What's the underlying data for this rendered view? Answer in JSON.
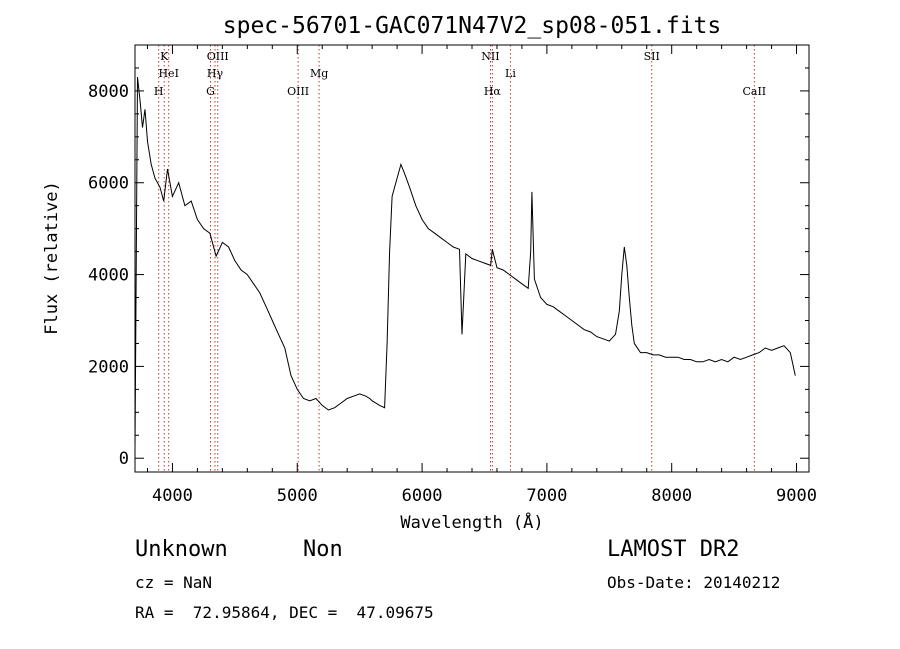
{
  "chart_data": {
    "type": "line",
    "title": "spec-56701-GAC071N47V2_sp08-051.fits",
    "xlabel": "Wavelength (Å)",
    "ylabel": "Flux (relative)",
    "xlim": [
      3700,
      9100
    ],
    "ylim": [
      -300,
      9000
    ],
    "x_ticks": [
      4000,
      5000,
      6000,
      7000,
      8000,
      9000
    ],
    "y_ticks": [
      0,
      2000,
      4000,
      6000,
      8000
    ],
    "grid": false,
    "line_color": "#000000",
    "marker_color": "#c0392b",
    "series": [
      {
        "x": [
          3700,
          3720,
          3740,
          3760,
          3780,
          3800,
          3830,
          3860,
          3900,
          3930,
          3960,
          4000,
          4050,
          4100,
          4150,
          4200,
          4250,
          4300,
          4350,
          4400,
          4450,
          4500,
          4550,
          4600,
          4650,
          4700,
          4750,
          4800,
          4850,
          4900,
          4950,
          5000,
          5050,
          5100,
          5150,
          5200,
          5250,
          5300,
          5350,
          5400,
          5450,
          5500,
          5550,
          5580,
          5600,
          5630,
          5660,
          5700,
          5720,
          5740,
          5760,
          5780,
          5800,
          5830,
          5860,
          5900,
          5950,
          6000,
          6050,
          6100,
          6150,
          6200,
          6250,
          6300,
          6320,
          6350,
          6400,
          6450,
          6500,
          6550,
          6563,
          6600,
          6650,
          6700,
          6750,
          6800,
          6850,
          6870,
          6880,
          6890,
          6900,
          6950,
          7000,
          7050,
          7100,
          7150,
          7200,
          7250,
          7300,
          7350,
          7400,
          7450,
          7500,
          7550,
          7580,
          7600,
          7620,
          7640,
          7660,
          7680,
          7700,
          7750,
          7800,
          7850,
          7900,
          7950,
          8000,
          8050,
          8100,
          8150,
          8200,
          8250,
          8300,
          8350,
          8400,
          8450,
          8500,
          8550,
          8600,
          8650,
          8700,
          8750,
          8800,
          8850,
          8900,
          8950,
          8990
        ],
        "y": [
          200,
          8300,
          7800,
          7200,
          7600,
          6900,
          6400,
          6100,
          5900,
          5600,
          6300,
          5700,
          6000,
          5500,
          5600,
          5200,
          5000,
          4900,
          4400,
          4700,
          4600,
          4300,
          4100,
          4000,
          3800,
          3600,
          3300,
          3000,
          2700,
          2400,
          1800,
          1500,
          1300,
          1250,
          1300,
          1150,
          1050,
          1100,
          1200,
          1300,
          1350,
          1400,
          1350,
          1300,
          1250,
          1200,
          1150,
          1100,
          2500,
          4500,
          5700,
          5900,
          6100,
          6400,
          6200,
          5900,
          5500,
          5200,
          5000,
          4900,
          4800,
          4700,
          4600,
          4550,
          2700,
          4450,
          4350,
          4300,
          4250,
          4200,
          4550,
          4150,
          4100,
          4000,
          3900,
          3800,
          3700,
          4500,
          5800,
          4800,
          3900,
          3500,
          3350,
          3300,
          3200,
          3100,
          3000,
          2900,
          2800,
          2750,
          2650,
          2600,
          2550,
          2700,
          3200,
          4000,
          4600,
          4200,
          3500,
          2900,
          2500,
          2300,
          2300,
          2250,
          2250,
          2200,
          2200,
          2200,
          2150,
          2150,
          2100,
          2100,
          2150,
          2100,
          2150,
          2100,
          2200,
          2150,
          2200,
          2250,
          2300,
          2400,
          2350,
          2400,
          2450,
          2300,
          1800
        ]
      }
    ],
    "lines": [
      {
        "label": "H",
        "x": 3890,
        "row": 2
      },
      {
        "label": "K",
        "x": 3934,
        "row": 0
      },
      {
        "label": "HeI",
        "x": 3970,
        "row": 1
      },
      {
        "label": "G",
        "x": 4305,
        "row": 2
      },
      {
        "label": "Hγ",
        "x": 4341,
        "row": 1
      },
      {
        "label": "OIII",
        "x": 4363,
        "row": 0
      },
      {
        "label": "OIII",
        "x": 5007,
        "row": 2
      },
      {
        "label": "Mg",
        "x": 5175,
        "row": 1
      },
      {
        "label": "NII",
        "x": 6548,
        "row": 0
      },
      {
        "label": "Hα",
        "x": 6563,
        "row": 2
      },
      {
        "label": "Li",
        "x": 6708,
        "row": 1
      },
      {
        "label": "SII",
        "x": 7840,
        "row": 0
      },
      {
        "label": "CaII",
        "x": 8662,
        "row": 2
      }
    ]
  },
  "info": {
    "class_name": "Unknown",
    "subclass": "Non",
    "survey": "LAMOST DR2",
    "cz": "cz = NaN",
    "obs_date": "Obs-Date: 20140212",
    "coords": "RA =  72.95864, DEC =  47.09675"
  }
}
